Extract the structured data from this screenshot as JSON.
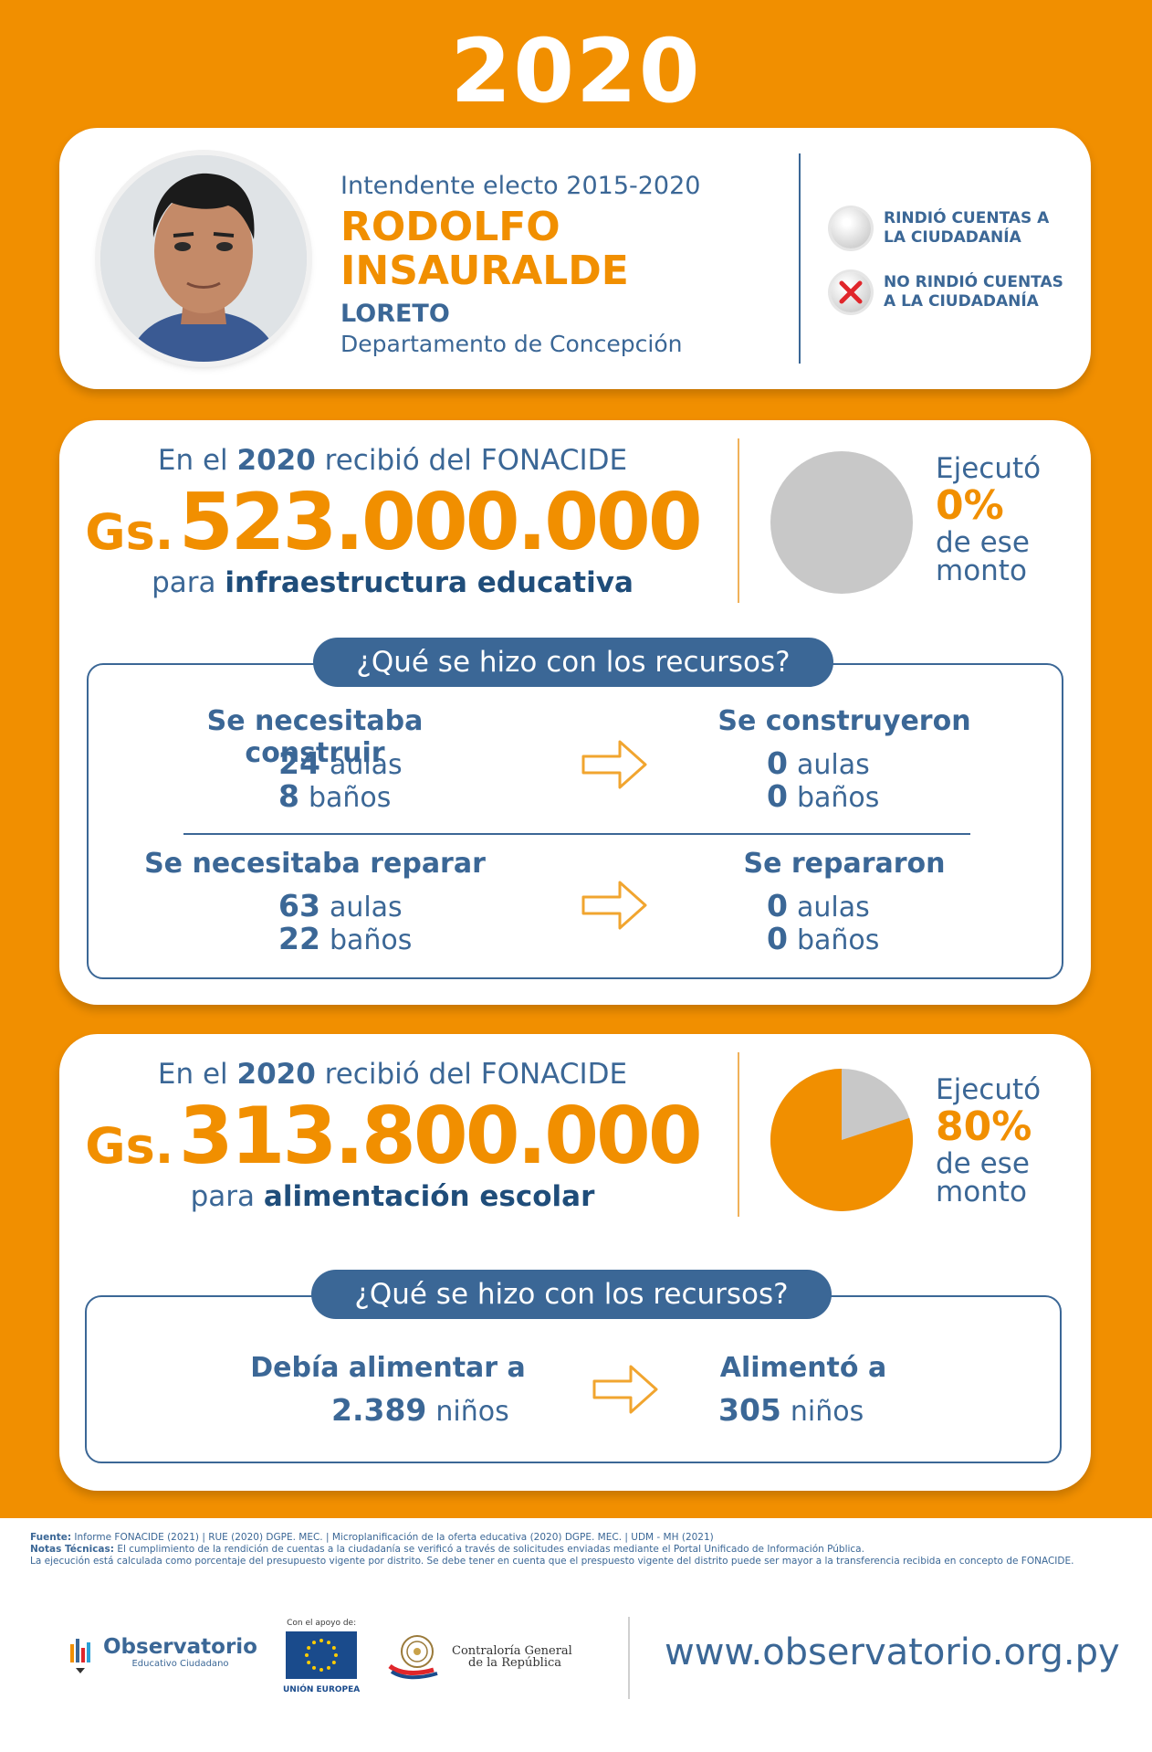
{
  "year": "2020",
  "profile": {
    "office": "Intendente electo 2015-2020",
    "first_name": "RODOLFO",
    "last_name": "INSAURALDE",
    "district": "LORETO",
    "department": "Departamento de Concepción"
  },
  "legend": {
    "rendered": "RINDIÓ CUENTAS A LA CIUDADANÍA",
    "not_rendered": "NO RINDIÓ CUENTAS A LA CIUDADANÍA"
  },
  "infra": {
    "intro_pre": "En el",
    "intro_year": "2020",
    "intro_post": "recibió del FONACIDE",
    "currency": "Gs.",
    "amount": "523.000.000",
    "purpose_pre": "para",
    "purpose": "infraestructura educativa",
    "executed_label": "Ejecutó",
    "executed_pct": "0%",
    "executed_suffix": "de ese monto",
    "executed_value": 0,
    "question": "¿Qué se hizo con los recursos?",
    "build_needed_label": "Se necesitaba construir",
    "build_needed_classrooms": "24",
    "build_needed_bathrooms": "8",
    "built_label": "Se construyeron",
    "built_classrooms": "0",
    "built_bathrooms": "0",
    "repair_needed_label": "Se necesitaba reparar",
    "repair_needed_classrooms": "63",
    "repair_needed_bathrooms": "22",
    "repaired_label": "Se repararon",
    "repaired_classrooms": "0",
    "repaired_bathrooms": "0",
    "classrooms_word": "aulas",
    "bathrooms_word": "baños"
  },
  "food": {
    "intro_pre": "En el",
    "intro_year": "2020",
    "intro_post": "recibió del FONACIDE",
    "currency": "Gs.",
    "amount": "313.800.000",
    "purpose_pre": "para",
    "purpose": "alimentación escolar",
    "executed_label": "Ejecutó",
    "executed_pct": "80%",
    "executed_suffix": "de ese monto",
    "executed_value": 80,
    "question": "¿Qué se hizo con los recursos?",
    "should_feed_label": "Debía alimentar a",
    "should_feed_count": "2.389",
    "fed_label": "Alimentó a",
    "fed_count": "305",
    "children_word": "niños"
  },
  "colors": {
    "orange": "#f18f00",
    "blue": "#3b6796",
    "grey": "#c8c8c8",
    "red_x": "#e0262b"
  },
  "footer": {
    "source_label": "Fuente:",
    "source_text": "Informe FONACIDE (2021) | RUE (2020) DGPE. MEC. | Microplanificación de la oferta educativa (2020) DGPE. MEC. | UDM - MH (2021)",
    "notes_label": "Notas Técnicas:",
    "notes_text": "El cumplimiento de la rendición de cuentas a la ciudadanía se verificó a través de solicitudes enviadas mediante el Portal Unificado de Información Pública.",
    "notes_text2": "La ejecución está calculada como porcentaje del presupuesto vigente por distrito. Se debe tener en cuenta que el prespuesto vigente del distrito puede ser mayor a la transferencia recibida en concepto de FONACIDE.",
    "obs_title": "Observatorio",
    "obs_sub": "Educativo Ciudadano",
    "eu_top": "Con el apoyo de:",
    "eu_bottom": "UNIÓN EUROPEA",
    "cgr_line1": "Contraloría General",
    "cgr_line2": "de la República",
    "url": "www.observatorio.org.py"
  }
}
